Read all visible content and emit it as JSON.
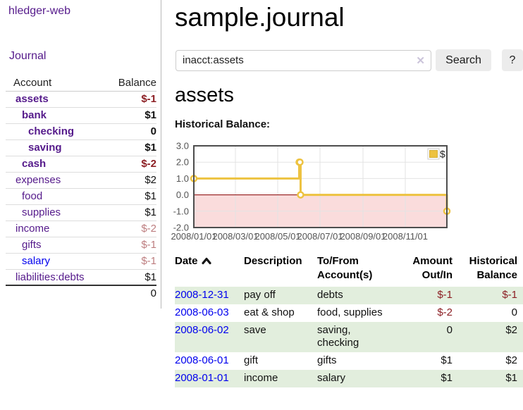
{
  "app": {
    "brand": "hledger-web"
  },
  "sidebar": {
    "journal_link": "Journal",
    "accounts": {
      "header": {
        "account": "Account",
        "balance": "Balance"
      },
      "rows": [
        {
          "name": "assets",
          "balance": "$-1"
        },
        {
          "name": "bank",
          "balance": "$1"
        },
        {
          "name": "checking",
          "balance": "0"
        },
        {
          "name": "saving",
          "balance": "$1"
        },
        {
          "name": "cash",
          "balance": "$-2"
        },
        {
          "name": "expenses",
          "balance": "$2"
        },
        {
          "name": "food",
          "balance": "$1"
        },
        {
          "name": "supplies",
          "balance": "$1"
        },
        {
          "name": "income",
          "balance": "$-2"
        },
        {
          "name": "gifts",
          "balance": "$-1"
        },
        {
          "name": "salary",
          "balance": "$-1"
        },
        {
          "name": "liabilities:debts",
          "balance": "$1"
        }
      ],
      "total": "0"
    }
  },
  "main": {
    "title": "sample.journal",
    "search": {
      "value": "inacct:assets",
      "clear_icon": "✕",
      "button_label": "Search",
      "help_label": "?"
    },
    "account_heading": "assets"
  },
  "chart_data": {
    "type": "line",
    "title": "Historical Balance:",
    "series": [
      {
        "name": "$",
        "color": "#edc240",
        "steps": true,
        "points": [
          [
            "2008-01-01",
            1
          ],
          [
            "2008-06-01",
            2
          ],
          [
            "2008-06-02",
            2
          ],
          [
            "2008-06-03",
            0
          ],
          [
            "2008-12-31",
            -1
          ]
        ]
      }
    ],
    "xlim": [
      "2008-01-01",
      "2008-12-31"
    ],
    "ylim": [
      -2,
      3
    ],
    "x_ticks": [
      "2008/01/01",
      "2008/03/01",
      "2008/05/01",
      "2008/07/01",
      "2008/09/01",
      "2008/11/01"
    ],
    "y_ticks": [
      "3.0",
      "2.0",
      "1.0",
      "0.0",
      "-1.0",
      "-2.0"
    ],
    "grid": true,
    "grid_color": "#e3e3e3",
    "border_color": "#4d4d4d",
    "zero_line_color": "#8b0000",
    "negative_region_color": "#fadcdc",
    "legend": {
      "label": "$",
      "position": "top-right"
    }
  },
  "register": {
    "headers": {
      "date": "Date",
      "description": "Description",
      "tofrom": "To/From Account(s)",
      "amount": "Amount Out/In",
      "balance": "Historical Balance"
    },
    "rows": [
      {
        "date": "2008-12-31",
        "description": "pay off",
        "accounts": "debts",
        "amount": "$-1",
        "balance": "$-1"
      },
      {
        "date": "2008-06-03",
        "description": "eat & shop",
        "accounts": "food, supplies",
        "amount": "$-2",
        "balance": "0"
      },
      {
        "date": "2008-06-02",
        "description": "save",
        "accounts": "saving, checking",
        "amount": "0",
        "balance": "$2"
      },
      {
        "date": "2008-06-01",
        "description": "gift",
        "accounts": "gifts",
        "amount": "$1",
        "balance": "$2"
      },
      {
        "date": "2008-01-01",
        "description": "income",
        "accounts": "salary",
        "amount": "$1",
        "balance": "$1"
      }
    ]
  },
  "colors": {
    "link_purple": "#551a8b",
    "link_blue": "#0000ee",
    "negative_strong": "#8c1f24",
    "negative_soft": "#bd7d7f",
    "row_stripe_green": "#e2eedd",
    "series_yellow": "#edc240",
    "chart_negative_pink": "#fadcdc",
    "chart_zero_line": "#8b0000"
  }
}
